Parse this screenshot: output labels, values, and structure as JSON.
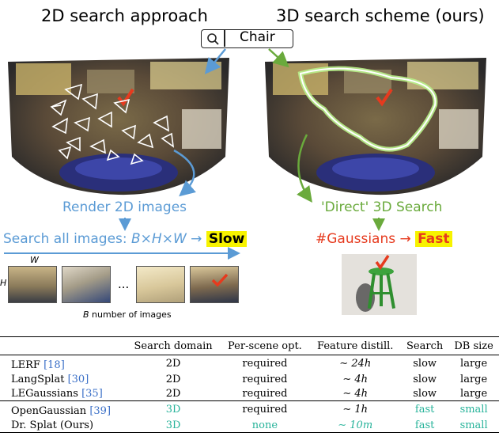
{
  "titles": {
    "left": "2D search approach",
    "right": "3D search scheme (ours)"
  },
  "search": {
    "query": "Chair",
    "icon": "magnifier-icon"
  },
  "left_panel": {
    "render_label": "Render 2D images",
    "search_all_prefix": "Search all images: ",
    "search_all_formula": "B×H×W",
    "arrow": "→",
    "slow_label": "Slow",
    "w_label": "W",
    "h_label": "H",
    "ellipsis": "...",
    "caption_b": "B",
    "caption_rest": " number of images"
  },
  "right_panel": {
    "direct_label": "'Direct' 3D Search",
    "gaussians_label": "#Gaussians",
    "arrow": "→",
    "fast_label": "Fast"
  },
  "colors": {
    "blue": "#5b9bd5",
    "green": "#6aaa3c",
    "red": "#e63a1e",
    "highlight": "#f7f300",
    "teal": "#27b39a",
    "cite": "#3a6fc7"
  },
  "table": {
    "headers": [
      "",
      "Search domain",
      "Per-scene opt.",
      "Feature distill.",
      "Search",
      "DB size"
    ],
    "rows": [
      {
        "method": "LERF",
        "cite": "[18]",
        "domain": "2D",
        "opt": "required",
        "distill": "∼ 24h",
        "search": "slow",
        "db": "large"
      },
      {
        "method": "LangSplat",
        "cite": "[30]",
        "domain": "2D",
        "opt": "required",
        "distill": "∼ 4h",
        "search": "slow",
        "db": "large"
      },
      {
        "method": "LEGaussians",
        "cite": "[35]",
        "domain": "2D",
        "opt": "required",
        "distill": "∼ 4h",
        "search": "slow",
        "db": "large"
      },
      {
        "method": "OpenGaussian",
        "cite": "[39]",
        "domain": "3D",
        "opt": "required",
        "distill": "∼ 1h",
        "search": "fast",
        "db": "small"
      },
      {
        "method": "Dr. Splat (Ours)",
        "cite": "",
        "domain": "3D",
        "opt": "none",
        "distill": "∼ 10m",
        "search": "fast",
        "db": "small"
      }
    ]
  }
}
